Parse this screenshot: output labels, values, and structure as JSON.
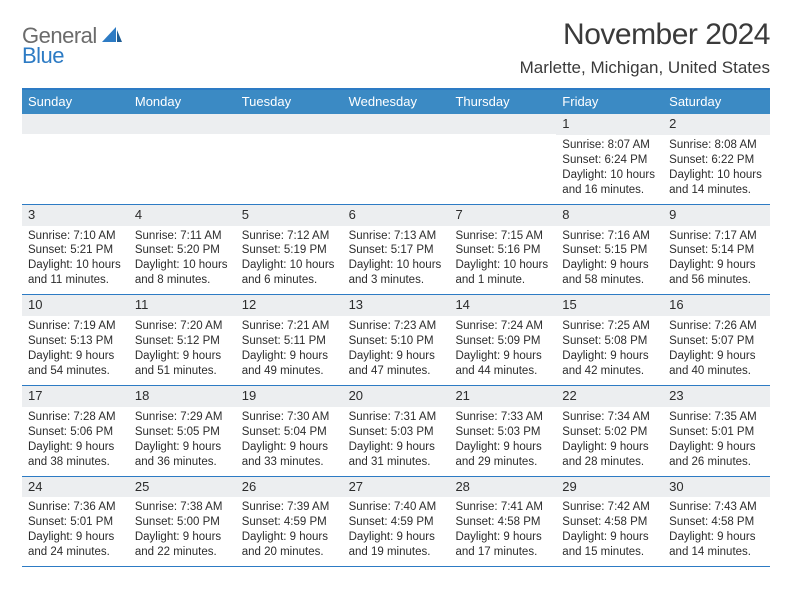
{
  "logo": {
    "word1": "General",
    "word2": "Blue"
  },
  "title": "November 2024",
  "location": "Marlette, Michigan, United States",
  "header_bg": "#3b8ac4",
  "rule_color": "#2d7bc4",
  "daynum_bg": "#eceef0",
  "weekdays": [
    "Sunday",
    "Monday",
    "Tuesday",
    "Wednesday",
    "Thursday",
    "Friday",
    "Saturday"
  ],
  "weeks": [
    [
      {
        "n": "",
        "sr": "",
        "ss": "",
        "dl": ""
      },
      {
        "n": "",
        "sr": "",
        "ss": "",
        "dl": ""
      },
      {
        "n": "",
        "sr": "",
        "ss": "",
        "dl": ""
      },
      {
        "n": "",
        "sr": "",
        "ss": "",
        "dl": ""
      },
      {
        "n": "",
        "sr": "",
        "ss": "",
        "dl": ""
      },
      {
        "n": "1",
        "sr": "Sunrise: 8:07 AM",
        "ss": "Sunset: 6:24 PM",
        "dl": "Daylight: 10 hours and 16 minutes."
      },
      {
        "n": "2",
        "sr": "Sunrise: 8:08 AM",
        "ss": "Sunset: 6:22 PM",
        "dl": "Daylight: 10 hours and 14 minutes."
      }
    ],
    [
      {
        "n": "3",
        "sr": "Sunrise: 7:10 AM",
        "ss": "Sunset: 5:21 PM",
        "dl": "Daylight: 10 hours and 11 minutes."
      },
      {
        "n": "4",
        "sr": "Sunrise: 7:11 AM",
        "ss": "Sunset: 5:20 PM",
        "dl": "Daylight: 10 hours and 8 minutes."
      },
      {
        "n": "5",
        "sr": "Sunrise: 7:12 AM",
        "ss": "Sunset: 5:19 PM",
        "dl": "Daylight: 10 hours and 6 minutes."
      },
      {
        "n": "6",
        "sr": "Sunrise: 7:13 AM",
        "ss": "Sunset: 5:17 PM",
        "dl": "Daylight: 10 hours and 3 minutes."
      },
      {
        "n": "7",
        "sr": "Sunrise: 7:15 AM",
        "ss": "Sunset: 5:16 PM",
        "dl": "Daylight: 10 hours and 1 minute."
      },
      {
        "n": "8",
        "sr": "Sunrise: 7:16 AM",
        "ss": "Sunset: 5:15 PM",
        "dl": "Daylight: 9 hours and 58 minutes."
      },
      {
        "n": "9",
        "sr": "Sunrise: 7:17 AM",
        "ss": "Sunset: 5:14 PM",
        "dl": "Daylight: 9 hours and 56 minutes."
      }
    ],
    [
      {
        "n": "10",
        "sr": "Sunrise: 7:19 AM",
        "ss": "Sunset: 5:13 PM",
        "dl": "Daylight: 9 hours and 54 minutes."
      },
      {
        "n": "11",
        "sr": "Sunrise: 7:20 AM",
        "ss": "Sunset: 5:12 PM",
        "dl": "Daylight: 9 hours and 51 minutes."
      },
      {
        "n": "12",
        "sr": "Sunrise: 7:21 AM",
        "ss": "Sunset: 5:11 PM",
        "dl": "Daylight: 9 hours and 49 minutes."
      },
      {
        "n": "13",
        "sr": "Sunrise: 7:23 AM",
        "ss": "Sunset: 5:10 PM",
        "dl": "Daylight: 9 hours and 47 minutes."
      },
      {
        "n": "14",
        "sr": "Sunrise: 7:24 AM",
        "ss": "Sunset: 5:09 PM",
        "dl": "Daylight: 9 hours and 44 minutes."
      },
      {
        "n": "15",
        "sr": "Sunrise: 7:25 AM",
        "ss": "Sunset: 5:08 PM",
        "dl": "Daylight: 9 hours and 42 minutes."
      },
      {
        "n": "16",
        "sr": "Sunrise: 7:26 AM",
        "ss": "Sunset: 5:07 PM",
        "dl": "Daylight: 9 hours and 40 minutes."
      }
    ],
    [
      {
        "n": "17",
        "sr": "Sunrise: 7:28 AM",
        "ss": "Sunset: 5:06 PM",
        "dl": "Daylight: 9 hours and 38 minutes."
      },
      {
        "n": "18",
        "sr": "Sunrise: 7:29 AM",
        "ss": "Sunset: 5:05 PM",
        "dl": "Daylight: 9 hours and 36 minutes."
      },
      {
        "n": "19",
        "sr": "Sunrise: 7:30 AM",
        "ss": "Sunset: 5:04 PM",
        "dl": "Daylight: 9 hours and 33 minutes."
      },
      {
        "n": "20",
        "sr": "Sunrise: 7:31 AM",
        "ss": "Sunset: 5:03 PM",
        "dl": "Daylight: 9 hours and 31 minutes."
      },
      {
        "n": "21",
        "sr": "Sunrise: 7:33 AM",
        "ss": "Sunset: 5:03 PM",
        "dl": "Daylight: 9 hours and 29 minutes."
      },
      {
        "n": "22",
        "sr": "Sunrise: 7:34 AM",
        "ss": "Sunset: 5:02 PM",
        "dl": "Daylight: 9 hours and 28 minutes."
      },
      {
        "n": "23",
        "sr": "Sunrise: 7:35 AM",
        "ss": "Sunset: 5:01 PM",
        "dl": "Daylight: 9 hours and 26 minutes."
      }
    ],
    [
      {
        "n": "24",
        "sr": "Sunrise: 7:36 AM",
        "ss": "Sunset: 5:01 PM",
        "dl": "Daylight: 9 hours and 24 minutes."
      },
      {
        "n": "25",
        "sr": "Sunrise: 7:38 AM",
        "ss": "Sunset: 5:00 PM",
        "dl": "Daylight: 9 hours and 22 minutes."
      },
      {
        "n": "26",
        "sr": "Sunrise: 7:39 AM",
        "ss": "Sunset: 4:59 PM",
        "dl": "Daylight: 9 hours and 20 minutes."
      },
      {
        "n": "27",
        "sr": "Sunrise: 7:40 AM",
        "ss": "Sunset: 4:59 PM",
        "dl": "Daylight: 9 hours and 19 minutes."
      },
      {
        "n": "28",
        "sr": "Sunrise: 7:41 AM",
        "ss": "Sunset: 4:58 PM",
        "dl": "Daylight: 9 hours and 17 minutes."
      },
      {
        "n": "29",
        "sr": "Sunrise: 7:42 AM",
        "ss": "Sunset: 4:58 PM",
        "dl": "Daylight: 9 hours and 15 minutes."
      },
      {
        "n": "30",
        "sr": "Sunrise: 7:43 AM",
        "ss": "Sunset: 4:58 PM",
        "dl": "Daylight: 9 hours and 14 minutes."
      }
    ]
  ]
}
